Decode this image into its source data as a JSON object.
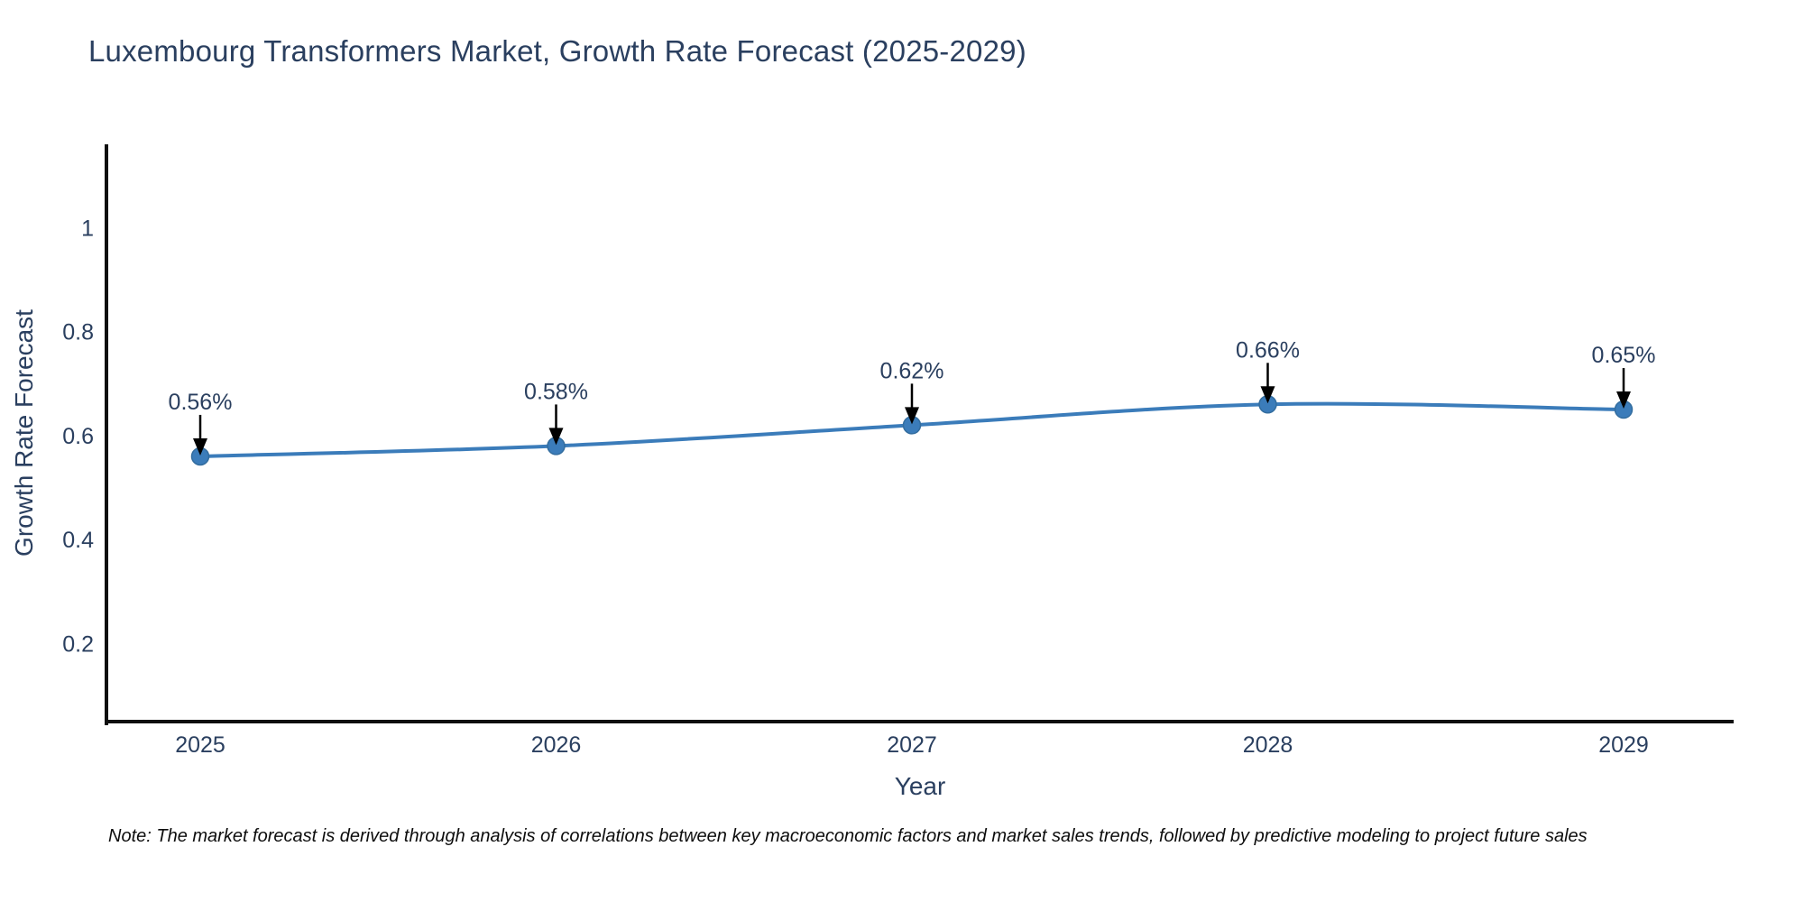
{
  "note": "Note: The market forecast is derived through analysis of correlations between key macroeconomic factors and market sales trends, followed by predictive modeling to project future sales",
  "chart_data": {
    "type": "line",
    "title": "Luxembourg Transformers Market, Growth Rate Forecast (2025-2029)",
    "xlabel": "Year",
    "ylabel": "Growth Rate Forecast",
    "x": [
      2025,
      2026,
      2027,
      2028,
      2029
    ],
    "series": [
      {
        "name": "Growth Rate Forecast",
        "values": [
          0.56,
          0.58,
          0.62,
          0.66,
          0.65
        ],
        "point_labels": [
          "0.56%",
          "0.58%",
          "0.62%",
          "0.66%",
          "0.65%"
        ]
      }
    ],
    "yticks": [
      0.2,
      0.4,
      0.6,
      0.8,
      1
    ],
    "ylim": [
      0.05,
      1.16
    ],
    "grid": false,
    "legend": "none",
    "colors": {
      "line": "#3b7cba",
      "marker": "#3b7cba",
      "marker_edge": "#336d9f",
      "axis": "#0f0f0f",
      "text": "#2a3f5f",
      "annotation_arrow": "#000000",
      "background": "#ffffff"
    }
  }
}
